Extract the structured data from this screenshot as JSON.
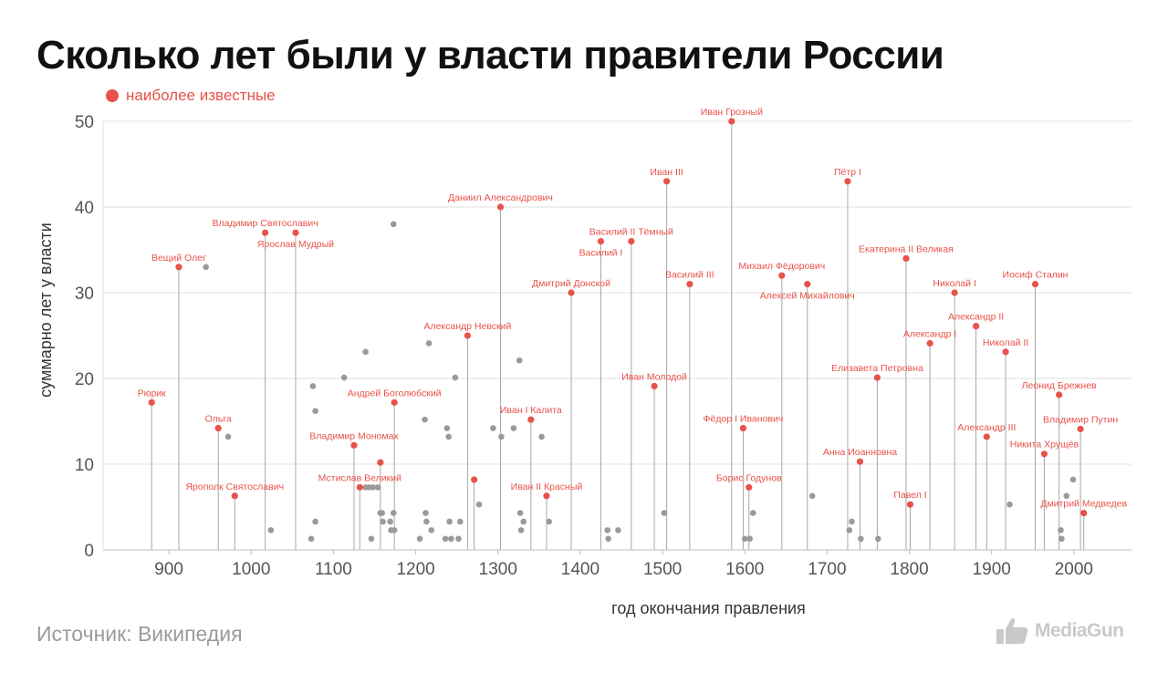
{
  "title": "Сколько лет были у власти правители России",
  "legend": {
    "label": "наиболее известные",
    "color": "#e8524a"
  },
  "source": "Источник: Википедия",
  "brand": {
    "name": "MediaGun",
    "icon": "thumbs-up-icon"
  },
  "colors": {
    "highlight": "#e8524a",
    "other": "#9a9a9a",
    "stem": "#a8a8a8",
    "grid": "#e2e2e2",
    "axis": "#bdbdbd"
  },
  "chart_data": {
    "type": "scatter",
    "xlabel": "год окончания правления",
    "ylabel": "суммарно лет у власти",
    "xlim": [
      820,
      2070
    ],
    "ylim": [
      0,
      50
    ],
    "xticks": [
      900,
      1000,
      1100,
      1200,
      1300,
      1400,
      1500,
      1600,
      1700,
      1800,
      1900,
      2000
    ],
    "yticks": [
      0,
      10,
      20,
      30,
      40,
      50
    ],
    "grid": true,
    "legend_position": "top-left",
    "series": [
      {
        "name": "наиболее известные",
        "points": [
          {
            "x": 879,
            "y": 17.2,
            "label": "Рюрик",
            "anchor": "middle",
            "ldy": -7
          },
          {
            "x": 912,
            "y": 33,
            "label": "Вещий Олег",
            "anchor": "middle",
            "ldy": -7
          },
          {
            "x": 960,
            "y": 14.2,
            "label": "Ольга",
            "anchor": "middle",
            "ldy": -7
          },
          {
            "x": 980,
            "y": 6.3,
            "label": "Ярополк Святославич",
            "anchor": "middle",
            "ldy": -7
          },
          {
            "x": 1017,
            "y": 37,
            "label": "Владимир Святославич",
            "anchor": "middle",
            "ldy": -7
          },
          {
            "x": 1054,
            "y": 37,
            "label": "Ярослав Мудрый",
            "anchor": "middle",
            "ldy": 16
          },
          {
            "x": 1125,
            "y": 12.2,
            "label": "Владимир Мономах",
            "anchor": "middle",
            "ldy": -7
          },
          {
            "x": 1132,
            "y": 7.3,
            "label": "Мстислав Великий",
            "anchor": "middle",
            "ldy": -7
          },
          {
            "x": 1157,
            "y": 10.2,
            "label": "",
            "anchor": "middle",
            "ldy": -7
          },
          {
            "x": 1174,
            "y": 17.2,
            "label": "Андрей Боголюбский",
            "anchor": "middle",
            "ldy": -7
          },
          {
            "x": 1263,
            "y": 25,
            "label": "Александр Невский",
            "anchor": "middle",
            "ldy": -7
          },
          {
            "x": 1271,
            "y": 8.2,
            "label": "",
            "anchor": "middle",
            "ldy": -7
          },
          {
            "x": 1303,
            "y": 40,
            "label": "Даниил Александрович",
            "anchor": "middle",
            "ldy": -7
          },
          {
            "x": 1340,
            "y": 15.2,
            "label": "Иван I Калита",
            "anchor": "middle",
            "ldy": -7
          },
          {
            "x": 1359,
            "y": 6.3,
            "label": "Иван II Красный",
            "anchor": "middle",
            "ldy": -7
          },
          {
            "x": 1389,
            "y": 30,
            "label": "Дмитрий Донской",
            "anchor": "middle",
            "ldy": -7
          },
          {
            "x": 1425,
            "y": 36,
            "label": "Василий I",
            "anchor": "middle",
            "ldy": 16
          },
          {
            "x": 1462,
            "y": 36,
            "label": "Василий II Тёмный",
            "anchor": "middle",
            "ldy": -7
          },
          {
            "x": 1490,
            "y": 19.1,
            "label": "Иван Молодой",
            "anchor": "middle",
            "ldy": -7
          },
          {
            "x": 1505,
            "y": 43,
            "label": "Иван III",
            "anchor": "middle",
            "ldy": -7
          },
          {
            "x": 1533,
            "y": 31,
            "label": "Василий III",
            "anchor": "middle",
            "ldy": -7
          },
          {
            "x": 1584,
            "y": 50,
            "label": "Иван Грозный",
            "anchor": "middle",
            "ldy": -7
          },
          {
            "x": 1598,
            "y": 14.2,
            "label": "Фёдор I Иванович",
            "anchor": "middle",
            "ldy": -7
          },
          {
            "x": 1605,
            "y": 7.3,
            "label": "Борис Годунов",
            "anchor": "middle",
            "ldy": -7
          },
          {
            "x": 1645,
            "y": 32,
            "label": "Михаил Фёдорович",
            "anchor": "middle",
            "ldy": -7
          },
          {
            "x": 1676,
            "y": 31,
            "label": "Алексей Михайлович",
            "anchor": "middle",
            "ldy": 16
          },
          {
            "x": 1725,
            "y": 43,
            "label": "Пётр I",
            "anchor": "middle",
            "ldy": -7
          },
          {
            "x": 1740,
            "y": 10.3,
            "label": "Анна Иоанновна",
            "anchor": "middle",
            "ldy": -7
          },
          {
            "x": 1761,
            "y": 20.1,
            "label": "Елизавета Петровна",
            "anchor": "middle",
            "ldy": -7
          },
          {
            "x": 1796,
            "y": 34,
            "label": "Екатерина II Великая",
            "anchor": "middle",
            "ldy": -7
          },
          {
            "x": 1801,
            "y": 5.3,
            "label": "Павел I",
            "anchor": "middle",
            "ldy": -7
          },
          {
            "x": 1825,
            "y": 24.1,
            "label": "Александр I",
            "anchor": "middle",
            "ldy": -7
          },
          {
            "x": 1855,
            "y": 30,
            "label": "Николай I",
            "anchor": "middle",
            "ldy": -7
          },
          {
            "x": 1881,
            "y": 26.1,
            "label": "Александр II",
            "anchor": "middle",
            "ldy": -7
          },
          {
            "x": 1894,
            "y": 13.2,
            "label": "Александр III",
            "anchor": "middle",
            "ldy": -7
          },
          {
            "x": 1917,
            "y": 23.1,
            "label": "Николай II",
            "anchor": "middle",
            "ldy": -7
          },
          {
            "x": 1953,
            "y": 31,
            "label": "Иосиф Сталин",
            "anchor": "middle",
            "ldy": -7
          },
          {
            "x": 1964,
            "y": 11.2,
            "label": "Никита Хрущёв",
            "anchor": "middle",
            "ldy": -7
          },
          {
            "x": 1982,
            "y": 18.1,
            "label": "Леонид Брежнев",
            "anchor": "middle",
            "ldy": -7
          },
          {
            "x": 2008,
            "y": 14.1,
            "label": "Владимир Путин",
            "anchor": "middle",
            "ldy": -7
          },
          {
            "x": 2012,
            "y": 4.3,
            "label": "Дмитрий Медведев",
            "anchor": "middle",
            "ldy": -7
          }
        ]
      },
      {
        "name": "",
        "points": [
          {
            "x": 945,
            "y": 33
          },
          {
            "x": 972,
            "y": 13.2
          },
          {
            "x": 1024,
            "y": 2.3
          },
          {
            "x": 1073,
            "y": 1.3
          },
          {
            "x": 1075,
            "y": 19.1
          },
          {
            "x": 1078,
            "y": 16.2
          },
          {
            "x": 1078,
            "y": 3.3
          },
          {
            "x": 1113,
            "y": 20.1
          },
          {
            "x": 1139,
            "y": 23.1
          },
          {
            "x": 1139,
            "y": 7.3
          },
          {
            "x": 1143,
            "y": 7.3
          },
          {
            "x": 1146,
            "y": 1.3
          },
          {
            "x": 1148,
            "y": 7.3
          },
          {
            "x": 1154,
            "y": 7.3
          },
          {
            "x": 1157,
            "y": 4.3
          },
          {
            "x": 1159,
            "y": 4.3
          },
          {
            "x": 1160,
            "y": 3.3
          },
          {
            "x": 1169,
            "y": 3.3
          },
          {
            "x": 1170,
            "y": 2.3
          },
          {
            "x": 1173,
            "y": 38
          },
          {
            "x": 1173,
            "y": 4.3
          },
          {
            "x": 1174,
            "y": 2.3
          },
          {
            "x": 1205,
            "y": 1.3
          },
          {
            "x": 1211,
            "y": 15.2
          },
          {
            "x": 1212,
            "y": 4.3
          },
          {
            "x": 1213,
            "y": 3.3
          },
          {
            "x": 1216,
            "y": 24.1
          },
          {
            "x": 1219,
            "y": 2.3
          },
          {
            "x": 1236,
            "y": 1.3
          },
          {
            "x": 1238,
            "y": 14.2
          },
          {
            "x": 1240,
            "y": 13.2
          },
          {
            "x": 1241,
            "y": 3.3
          },
          {
            "x": 1243,
            "y": 1.3
          },
          {
            "x": 1248,
            "y": 20.1
          },
          {
            "x": 1252,
            "y": 1.3
          },
          {
            "x": 1254,
            "y": 3.3
          },
          {
            "x": 1277,
            "y": 5.3
          },
          {
            "x": 1294,
            "y": 14.2
          },
          {
            "x": 1304,
            "y": 13.2
          },
          {
            "x": 1319,
            "y": 14.2
          },
          {
            "x": 1326,
            "y": 22.1
          },
          {
            "x": 1327,
            "y": 4.3
          },
          {
            "x": 1328,
            "y": 2.3
          },
          {
            "x": 1331,
            "y": 3.3
          },
          {
            "x": 1353,
            "y": 13.2
          },
          {
            "x": 1362,
            "y": 3.3
          },
          {
            "x": 1433,
            "y": 2.3
          },
          {
            "x": 1434,
            "y": 1.3
          },
          {
            "x": 1446,
            "y": 2.3
          },
          {
            "x": 1502,
            "y": 4.3
          },
          {
            "x": 1600,
            "y": 1.3
          },
          {
            "x": 1606,
            "y": 1.3
          },
          {
            "x": 1610,
            "y": 4.3
          },
          {
            "x": 1682,
            "y": 6.3
          },
          {
            "x": 1727,
            "y": 2.3
          },
          {
            "x": 1730,
            "y": 3.3
          },
          {
            "x": 1741,
            "y": 1.3
          },
          {
            "x": 1762,
            "y": 1.3
          },
          {
            "x": 1922,
            "y": 5.3
          },
          {
            "x": 1984,
            "y": 2.3
          },
          {
            "x": 1985,
            "y": 1.3
          },
          {
            "x": 1991,
            "y": 6.3
          },
          {
            "x": 1999,
            "y": 8.2
          }
        ]
      }
    ]
  }
}
